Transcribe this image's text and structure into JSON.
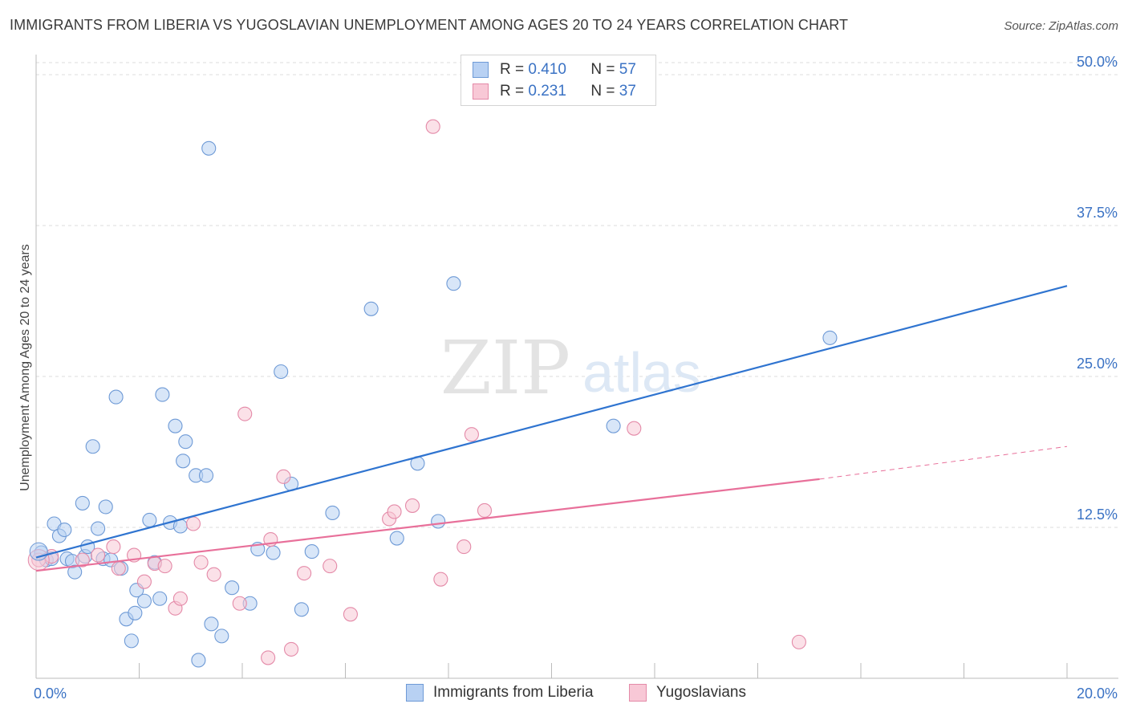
{
  "title": "IMMIGRANTS FROM LIBERIA VS YUGOSLAVIAN UNEMPLOYMENT AMONG AGES 20 TO 24 YEARS CORRELATION CHART",
  "source": "Source: ZipAtlas.com",
  "watermark": {
    "zip": "ZIP",
    "atlas": "atlas"
  },
  "legend": {
    "r_label": "R =",
    "n_label": "N =",
    "series": [
      {
        "r": "0.410",
        "n": "57"
      },
      {
        "r": "0.231",
        "n": "37"
      }
    ]
  },
  "colors": {
    "blue_fill": "#b8d1f3",
    "blue_stroke": "#6e9ad6",
    "blue_line": "#2f74d0",
    "pink_fill": "#f8c8d6",
    "pink_stroke": "#e48aa8",
    "pink_line": "#e8709a",
    "tick_label": "#3a72c4",
    "grid": "#dddddd"
  },
  "chart_data": {
    "type": "scatter",
    "title": "IMMIGRANTS FROM LIBERIA VS YUGOSLAVIAN UNEMPLOYMENT AMONG AGES 20 TO 24 YEARS CORRELATION CHART",
    "xlabel": "",
    "ylabel": "Unemployment Among Ages 20 to 24 years",
    "xlim": [
      0,
      20
    ],
    "ylim": [
      0,
      51
    ],
    "x_tick_labels": [
      {
        "value": 0,
        "label": "0.0%"
      },
      {
        "value": 20,
        "label": "20.0%"
      }
    ],
    "x_minor_ticks": [
      2,
      4,
      6,
      8,
      10,
      12,
      14,
      16,
      18,
      20
    ],
    "y_ticks": [
      {
        "value": 12.5,
        "label": "12.5%"
      },
      {
        "value": 25,
        "label": "25.0%"
      },
      {
        "value": 37.5,
        "label": "37.5%"
      },
      {
        "value": 50,
        "label": "50.0%"
      }
    ],
    "series": [
      {
        "name": "Immigrants from Liberia",
        "color": "blue",
        "points": [
          [
            0.1,
            10.4
          ],
          [
            0.2,
            9.8
          ],
          [
            0.3,
            9.9
          ],
          [
            0.35,
            12.8
          ],
          [
            0.45,
            11.8
          ],
          [
            0.55,
            12.3
          ],
          [
            0.6,
            9.9
          ],
          [
            0.7,
            9.7
          ],
          [
            0.75,
            8.8
          ],
          [
            0.9,
            14.5
          ],
          [
            0.95,
            10.1
          ],
          [
            1.0,
            10.9
          ],
          [
            1.1,
            19.2
          ],
          [
            1.2,
            12.4
          ],
          [
            1.3,
            9.9
          ],
          [
            1.35,
            14.2
          ],
          [
            1.45,
            9.8
          ],
          [
            1.55,
            23.3
          ],
          [
            1.65,
            9.1
          ],
          [
            1.75,
            4.9
          ],
          [
            1.85,
            3.1
          ],
          [
            1.92,
            5.4
          ],
          [
            1.95,
            7.3
          ],
          [
            2.1,
            6.4
          ],
          [
            2.2,
            13.1
          ],
          [
            2.3,
            9.6
          ],
          [
            2.4,
            6.6
          ],
          [
            2.45,
            23.5
          ],
          [
            2.6,
            12.9
          ],
          [
            2.7,
            20.9
          ],
          [
            2.8,
            12.6
          ],
          [
            2.85,
            18.0
          ],
          [
            2.9,
            19.6
          ],
          [
            3.1,
            16.8
          ],
          [
            3.15,
            1.5
          ],
          [
            3.3,
            16.8
          ],
          [
            3.35,
            43.9
          ],
          [
            3.4,
            4.5
          ],
          [
            3.6,
            3.5
          ],
          [
            3.8,
            7.5
          ],
          [
            4.15,
            6.2
          ],
          [
            4.3,
            10.7
          ],
          [
            4.6,
            10.4
          ],
          [
            4.75,
            25.4
          ],
          [
            4.95,
            16.1
          ],
          [
            5.15,
            5.7
          ],
          [
            5.35,
            10.5
          ],
          [
            5.75,
            13.7
          ],
          [
            6.5,
            30.6
          ],
          [
            7.0,
            11.6
          ],
          [
            7.4,
            17.8
          ],
          [
            7.8,
            13.0
          ],
          [
            8.1,
            32.7
          ],
          [
            11.2,
            20.9
          ],
          [
            15.4,
            28.2
          ]
        ],
        "trend": {
          "x1": 0,
          "y1": 10.0,
          "x2": 20,
          "y2": 32.5
        }
      },
      {
        "name": "Yugoslavians",
        "color": "pink",
        "points": [
          [
            0.05,
            9.8
          ],
          [
            0.3,
            10.1
          ],
          [
            0.9,
            9.8
          ],
          [
            1.2,
            10.2
          ],
          [
            1.5,
            10.9
          ],
          [
            1.6,
            9.1
          ],
          [
            1.9,
            10.2
          ],
          [
            2.1,
            8.0
          ],
          [
            2.3,
            9.5
          ],
          [
            2.5,
            9.3
          ],
          [
            2.7,
            5.8
          ],
          [
            2.8,
            6.6
          ],
          [
            3.05,
            12.8
          ],
          [
            3.2,
            9.6
          ],
          [
            3.45,
            8.6
          ],
          [
            3.95,
            6.2
          ],
          [
            4.05,
            21.9
          ],
          [
            4.5,
            1.7
          ],
          [
            4.55,
            11.5
          ],
          [
            4.8,
            16.7
          ],
          [
            4.95,
            2.4
          ],
          [
            5.2,
            8.7
          ],
          [
            5.7,
            9.3
          ],
          [
            6.1,
            5.3
          ],
          [
            6.85,
            13.2
          ],
          [
            6.95,
            13.8
          ],
          [
            7.3,
            14.3
          ],
          [
            7.7,
            45.7
          ],
          [
            7.85,
            8.2
          ],
          [
            8.3,
            10.9
          ],
          [
            8.45,
            20.2
          ],
          [
            8.7,
            13.9
          ],
          [
            11.6,
            20.7
          ],
          [
            14.8,
            3.0
          ]
        ],
        "trend": {
          "x1": 0,
          "y1": 8.9,
          "x2": 15.2,
          "y2": 16.5,
          "dash_to_x": 20,
          "dash_to_y": 19.2
        }
      }
    ]
  },
  "bottom_legend": [
    "Immigrants from Liberia",
    "Yugoslavians"
  ]
}
